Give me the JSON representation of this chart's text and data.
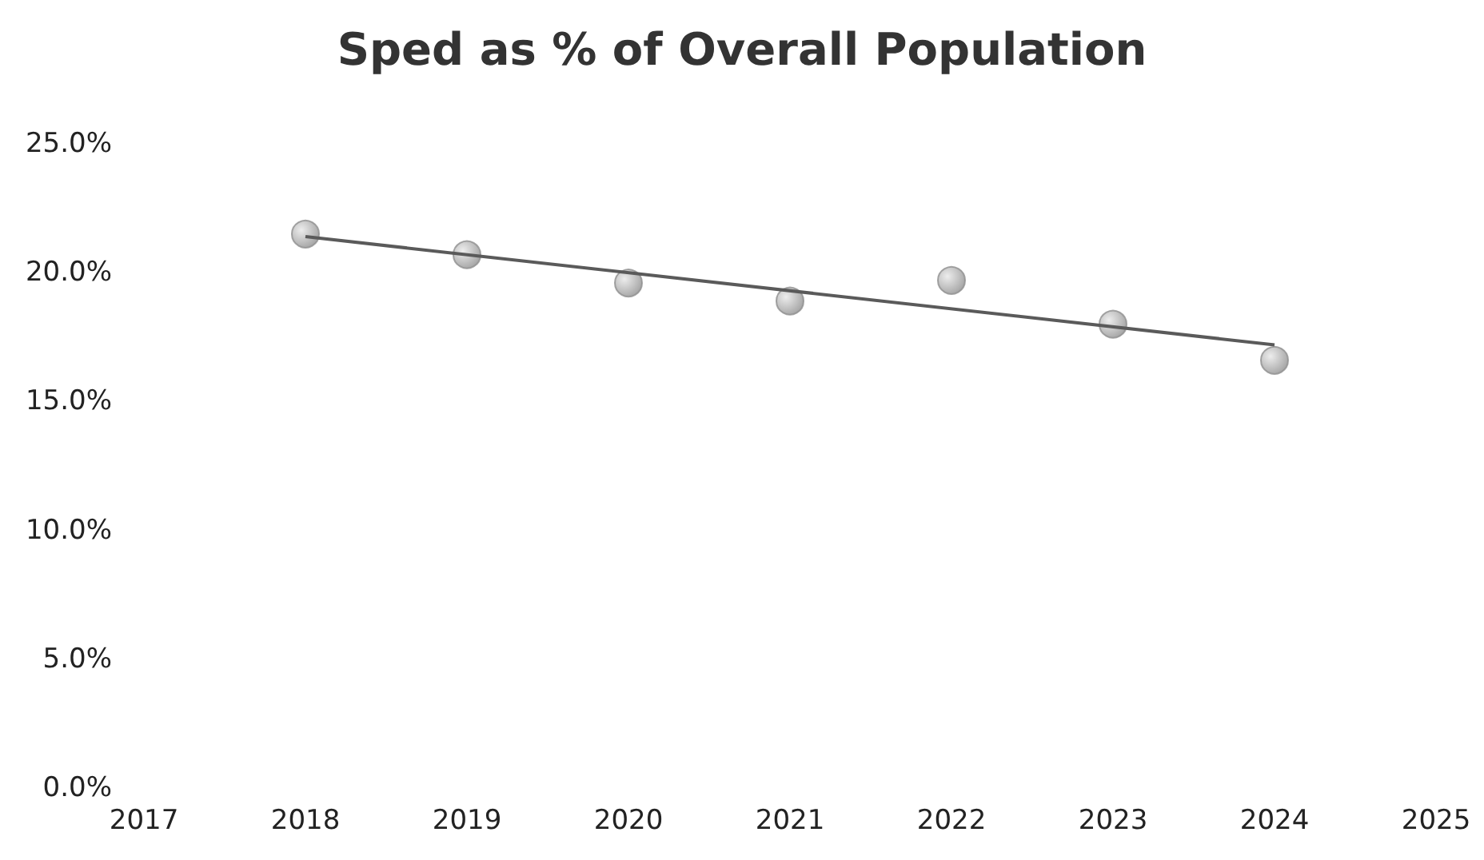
{
  "chart_data": {
    "type": "scatter",
    "title": "Sped as % of Overall Population",
    "x": [
      2018,
      2019,
      2020,
      2021,
      2022,
      2023,
      2024
    ],
    "series": [
      {
        "color": "#8f8f8f",
        "values": [
          21.5,
          20.7,
          19.6,
          18.9,
          19.7,
          18.0,
          16.6
        ]
      },
      {
        "type": "line",
        "color": "#5a5a5a",
        "x": [
          2018,
          2024
        ],
        "values": [
          21.4,
          17.2
        ],
        "marker": "none"
      }
    ],
    "xlim": [
      2017,
      2025
    ],
    "xticks": [
      2017,
      2018,
      2019,
      2020,
      2021,
      2022,
      2023,
      2024,
      2025
    ],
    "ylim": [
      0,
      25
    ],
    "yticks": [
      {
        "value": 0,
        "label": "0.0%"
      },
      {
        "value": 5,
        "label": "5.0%"
      },
      {
        "value": 10,
        "label": "10.0%"
      },
      {
        "value": 15,
        "label": "15.0%"
      },
      {
        "value": 20,
        "label": "20.0%"
      },
      {
        "value": 25,
        "label": "25.0%"
      }
    ],
    "grid": false,
    "marker": "circle"
  }
}
